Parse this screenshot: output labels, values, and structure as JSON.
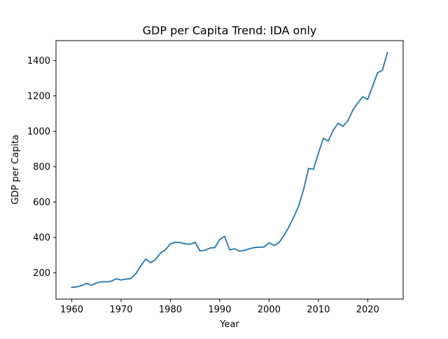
{
  "chart_data": {
    "type": "line",
    "title": "GDP per Capita Trend: IDA only",
    "xlabel": "Year",
    "ylabel": "GDP per Capita",
    "xlim": [
      1956.8,
      2027.2
    ],
    "ylim": [
      52,
      1512
    ],
    "x_ticks": [
      1960,
      1970,
      1980,
      1990,
      2000,
      2010,
      2020
    ],
    "y_ticks": [
      200,
      400,
      600,
      800,
      1000,
      1200,
      1400
    ],
    "grid": false,
    "legend": "none",
    "series": [
      {
        "color": "#1f77b4",
        "x": [
          1960,
          1961,
          1962,
          1963,
          1964,
          1965,
          1966,
          1967,
          1968,
          1969,
          1970,
          1971,
          1972,
          1973,
          1974,
          1975,
          1976,
          1977,
          1978,
          1979,
          1980,
          1981,
          1982,
          1983,
          1984,
          1985,
          1986,
          1987,
          1988,
          1989,
          1990,
          1991,
          1992,
          1993,
          1994,
          1995,
          1996,
          1997,
          1998,
          1999,
          2000,
          2001,
          2002,
          2003,
          2004,
          2005,
          2006,
          2007,
          2008,
          2009,
          2010,
          2011,
          2012,
          2013,
          2014,
          2015,
          2016,
          2017,
          2018,
          2019,
          2020,
          2021,
          2022,
          2023,
          2024
        ],
        "values": [
          118,
          121,
          128,
          141,
          130,
          143,
          150,
          149,
          153,
          166,
          160,
          165,
          168,
          196,
          240,
          278,
          258,
          276,
          312,
          331,
          364,
          373,
          371,
          364,
          362,
          373,
          324,
          328,
          340,
          343,
          388,
          407,
          330,
          336,
          323,
          327,
          336,
          343,
          345,
          346,
          370,
          355,
          370,
          410,
          458,
          515,
          577,
          670,
          790,
          785,
          875,
          960,
          945,
          1005,
          1045,
          1028,
          1060,
          1120,
          1160,
          1195,
          1180,
          1255,
          1330,
          1345,
          1445
        ]
      }
    ]
  }
}
